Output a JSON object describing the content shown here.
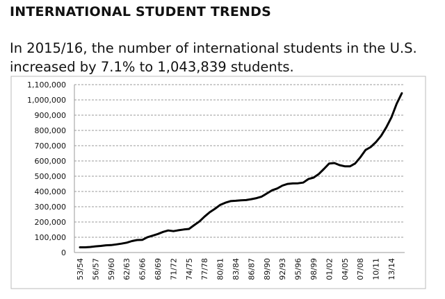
{
  "header": {
    "title": "INTERNATIONAL STUDENT TRENDS",
    "subtitle": "In 2015/16, the number of international students in the U.S. increased by 7.1% to 1,043,839 students."
  },
  "chart_data": {
    "type": "line",
    "title": "",
    "xlabel": "",
    "ylabel": "",
    "ylim": [
      0,
      1100000
    ],
    "yticks": [
      0,
      100000,
      200000,
      300000,
      400000,
      500000,
      600000,
      700000,
      800000,
      900000,
      1000000,
      1100000
    ],
    "ytick_labels": [
      "0",
      "100,000",
      "200,000",
      "300,000",
      "400,000",
      "500,000",
      "600,000",
      "700,000",
      "800,000",
      "900,000",
      "1,000,000",
      "1,100,000"
    ],
    "grid": true,
    "line_color": "#000000",
    "x": [
      "53/54",
      "54/55",
      "55/56",
      "56/57",
      "57/58",
      "58/59",
      "59/60",
      "60/61",
      "61/62",
      "62/63",
      "63/64",
      "64/65",
      "65/66",
      "66/67",
      "67/68",
      "68/69",
      "69/70",
      "70/71",
      "71/72",
      "72/73",
      "73/74",
      "74/75",
      "75/76",
      "76/77",
      "77/78",
      "78/79",
      "79/80",
      "80/81",
      "81/82",
      "82/83",
      "83/84",
      "84/85",
      "85/86",
      "86/87",
      "87/88",
      "88/89",
      "89/90",
      "90/91",
      "91/92",
      "92/93",
      "93/94",
      "94/95",
      "95/96",
      "96/97",
      "97/98",
      "98/99",
      "99/00",
      "00/01",
      "01/02",
      "02/03",
      "03/04",
      "04/05",
      "05/06",
      "06/07",
      "07/08",
      "08/09",
      "09/10",
      "10/11",
      "11/12",
      "12/13",
      "13/14",
      "14/15",
      "15/16"
    ],
    "xtick_labels": [
      "53/54",
      "56/57",
      "59/60",
      "62/63",
      "65/66",
      "68/69",
      "71/72",
      "74/75",
      "77/78",
      "80/81",
      "83/84",
      "86/87",
      "89/90",
      "92/93",
      "95/96",
      "98/99",
      "01/02",
      "04/05",
      "07/08",
      "10/11",
      "13/14"
    ],
    "series": [
      {
        "name": "International students",
        "values": [
          34232,
          34232,
          36494,
          40666,
          43391,
          47245,
          48486,
          53107,
          58086,
          64705,
          74814,
          82045,
          82709,
          100262,
          110315,
          121362,
          134959,
          144708,
          140126,
          146097,
          151066,
          154580,
          179344,
          203068,
          235509,
          263938,
          286343,
          311882,
          326299,
          336985,
          338894,
          342113,
          343777,
          349609,
          356187,
          366354,
          386851,
          407529,
          419585,
          438618,
          449749,
          452635,
          453787,
          457984,
          481280,
          490933,
          514723,
          547867,
          582996,
          586323,
          572509,
          565039,
          564766,
          582984,
          623805,
          671616,
          690923,
          723277,
          764495,
          819644,
          886052,
          974926,
          1043839
        ]
      }
    ]
  }
}
